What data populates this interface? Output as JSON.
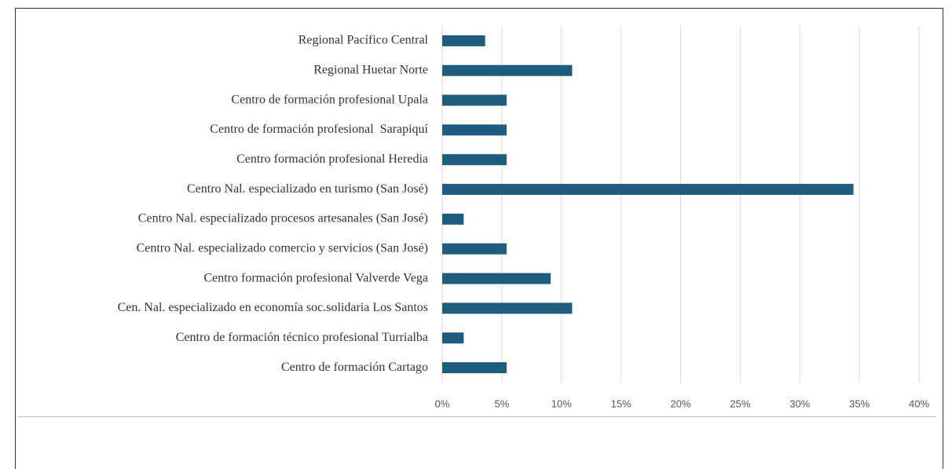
{
  "chart_data": {
    "type": "barh",
    "categories": [
      "Regional Pacífico Central",
      "Regional Huetar Norte",
      "Centro de formación profesional Upala",
      "Centro de formación profesional  Sarapiquí",
      "Centro formación profesional Heredia",
      "Centro Nal. especializado en turismo (San José)",
      "Centro Nal. especializado procesos artesanales (San José)",
      "Centro Nal. especializado comercio y servicios (San José)",
      "Centro formación profesional Valverde Vega",
      "Cen. Nal. especializado en economía soc.solidaria Los Santos",
      "Centro de formación técnico profesional Turrialba",
      "Centro de formación Cartago"
    ],
    "values": [
      3.6,
      10.9,
      5.4,
      5.4,
      5.4,
      34.5,
      1.8,
      5.4,
      9.1,
      10.9,
      1.8,
      5.4
    ],
    "color": "#1f5c7e",
    "xlim": [
      0,
      40
    ],
    "xticks": [
      {
        "value": 0,
        "label": "0%"
      },
      {
        "value": 5,
        "label": "5%"
      },
      {
        "value": 10,
        "label": "10%"
      },
      {
        "value": 15,
        "label": "15%"
      },
      {
        "value": 20,
        "label": "20%"
      },
      {
        "value": 25,
        "label": "25%"
      },
      {
        "value": 30,
        "label": "30%"
      },
      {
        "value": 35,
        "label": "35%"
      },
      {
        "value": 40,
        "label": "40%"
      }
    ],
    "grid": true
  }
}
